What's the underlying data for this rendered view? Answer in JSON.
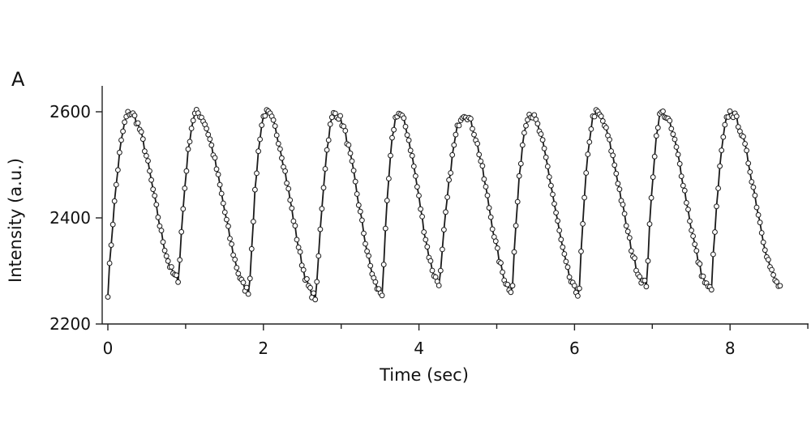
{
  "panel_label": "A",
  "chart_data": {
    "type": "line",
    "title": "",
    "xlabel": "Time (sec)",
    "ylabel": "Intensity (a.u.)",
    "xlim": [
      -0.15,
      9.0
    ],
    "ylim": [
      2200,
      2640
    ],
    "x_ticks": [
      0,
      2,
      4,
      6,
      8
    ],
    "x_minor_ticks": [
      1,
      3,
      5,
      7,
      9
    ],
    "y_ticks": [
      2200,
      2400,
      2600
    ],
    "grid": false,
    "legend": "none",
    "line_color": "#1a1a1a",
    "marker": "open-circle",
    "period_sec": 0.865,
    "series": [
      {
        "peaks": [
          {
            "t": 0.28,
            "value": 2598
          },
          {
            "t": 1.14,
            "value": 2598
          },
          {
            "t": 2.03,
            "value": 2598
          },
          {
            "t": 2.92,
            "value": 2597
          },
          {
            "t": 3.73,
            "value": 2597
          },
          {
            "t": 4.58,
            "value": 2596
          },
          {
            "t": 5.42,
            "value": 2596
          },
          {
            "t": 6.27,
            "value": 2598
          },
          {
            "t": 7.12,
            "value": 2598
          },
          {
            "t": 8.0,
            "value": 2598
          }
        ],
        "troughs": [
          {
            "t": 0.0,
            "value": 2258
          },
          {
            "t": 0.91,
            "value": 2285
          },
          {
            "t": 1.82,
            "value": 2262
          },
          {
            "t": 2.68,
            "value": 2250
          },
          {
            "t": 3.53,
            "value": 2258
          },
          {
            "t": 4.27,
            "value": 2278
          },
          {
            "t": 5.2,
            "value": 2265
          },
          {
            "t": 6.06,
            "value": 2258
          },
          {
            "t": 6.93,
            "value": 2275
          },
          {
            "t": 7.76,
            "value": 2265
          },
          {
            "t": 8.66,
            "value": 2270
          }
        ],
        "t_end": 8.66
      }
    ]
  }
}
